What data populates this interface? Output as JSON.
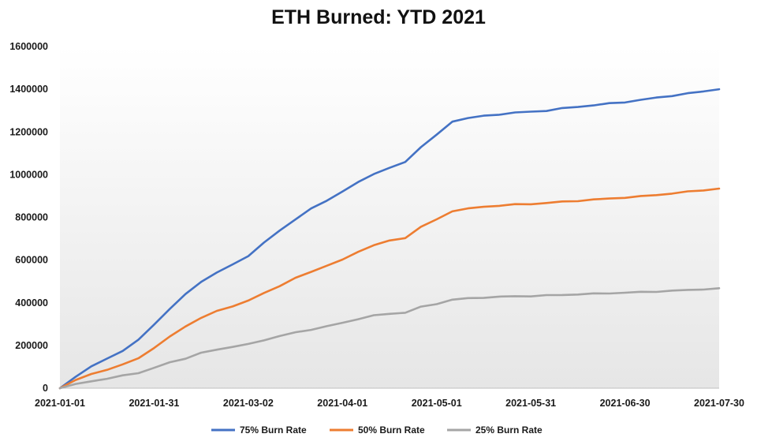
{
  "chart_data": {
    "type": "line",
    "title": "ETH Burned: YTD 2021",
    "xlabel": "",
    "ylabel": "",
    "x_ticks": [
      "2021-01-01",
      "2021-01-31",
      "2021-03-02",
      "2021-04-01",
      "2021-05-01",
      "2021-05-31",
      "2021-06-30",
      "2021-07-30"
    ],
    "y_ticks": [
      "0",
      "200000",
      "400000",
      "600000",
      "800000",
      "1000000",
      "1200000",
      "1400000",
      "1600000"
    ],
    "xlim": [
      "2021-01-01",
      "2021-07-30"
    ],
    "ylim": [
      0,
      1600000
    ],
    "grid": false,
    "legend_position": "bottom",
    "x": [
      "2021-01-01",
      "2021-01-06",
      "2021-01-11",
      "2021-01-16",
      "2021-01-21",
      "2021-01-26",
      "2021-01-31",
      "2021-02-05",
      "2021-02-10",
      "2021-02-15",
      "2021-02-20",
      "2021-02-25",
      "2021-03-02",
      "2021-03-07",
      "2021-03-12",
      "2021-03-17",
      "2021-03-22",
      "2021-03-27",
      "2021-04-01",
      "2021-04-06",
      "2021-04-11",
      "2021-04-16",
      "2021-04-21",
      "2021-04-26",
      "2021-05-01",
      "2021-05-06",
      "2021-05-11",
      "2021-05-16",
      "2021-05-21",
      "2021-05-26",
      "2021-05-31",
      "2021-06-05",
      "2021-06-10",
      "2021-06-15",
      "2021-06-20",
      "2021-06-25",
      "2021-06-30",
      "2021-07-05",
      "2021-07-10",
      "2021-07-15",
      "2021-07-20",
      "2021-07-25",
      "2021-07-30"
    ],
    "series": [
      {
        "name": "75% Burn Rate",
        "color": "#4472C4",
        "values": [
          0,
          55000,
          100000,
          140000,
          175000,
          225000,
          300000,
          370000,
          440000,
          500000,
          540000,
          580000,
          620000,
          680000,
          740000,
          790000,
          840000,
          880000,
          920000,
          965000,
          1005000,
          1030000,
          1060000,
          1130000,
          1185000,
          1250000,
          1265000,
          1275000,
          1283000,
          1290000,
          1295000,
          1300000,
          1310000,
          1318000,
          1325000,
          1333000,
          1340000,
          1350000,
          1360000,
          1370000,
          1380000,
          1390000,
          1400000
        ]
      },
      {
        "name": "50% Burn Rate",
        "color": "#ED7D31",
        "values": [
          0,
          38000,
          65000,
          88000,
          110000,
          140000,
          190000,
          240000,
          290000,
          330000,
          360000,
          385000,
          410000,
          445000,
          480000,
          515000,
          545000,
          575000,
          600000,
          640000,
          670000,
          690000,
          705000,
          755000,
          790000,
          830000,
          840000,
          850000,
          855000,
          860000,
          863000,
          867000,
          873000,
          878000,
          883000,
          888000,
          893000,
          898000,
          905000,
          912000,
          920000,
          928000,
          935000
        ]
      },
      {
        "name": "25% Burn Rate",
        "color": "#A5A5A5",
        "values": [
          0,
          18000,
          33000,
          45000,
          58000,
          72000,
          95000,
          120000,
          140000,
          165000,
          180000,
          195000,
          205000,
          225000,
          245000,
          260000,
          275000,
          290000,
          305000,
          325000,
          340000,
          348000,
          355000,
          380000,
          395000,
          415000,
          420000,
          425000,
          428000,
          430000,
          432000,
          434000,
          437000,
          440000,
          442000,
          445000,
          447000,
          450000,
          453000,
          456000,
          460000,
          464000,
          468000
        ]
      }
    ]
  }
}
